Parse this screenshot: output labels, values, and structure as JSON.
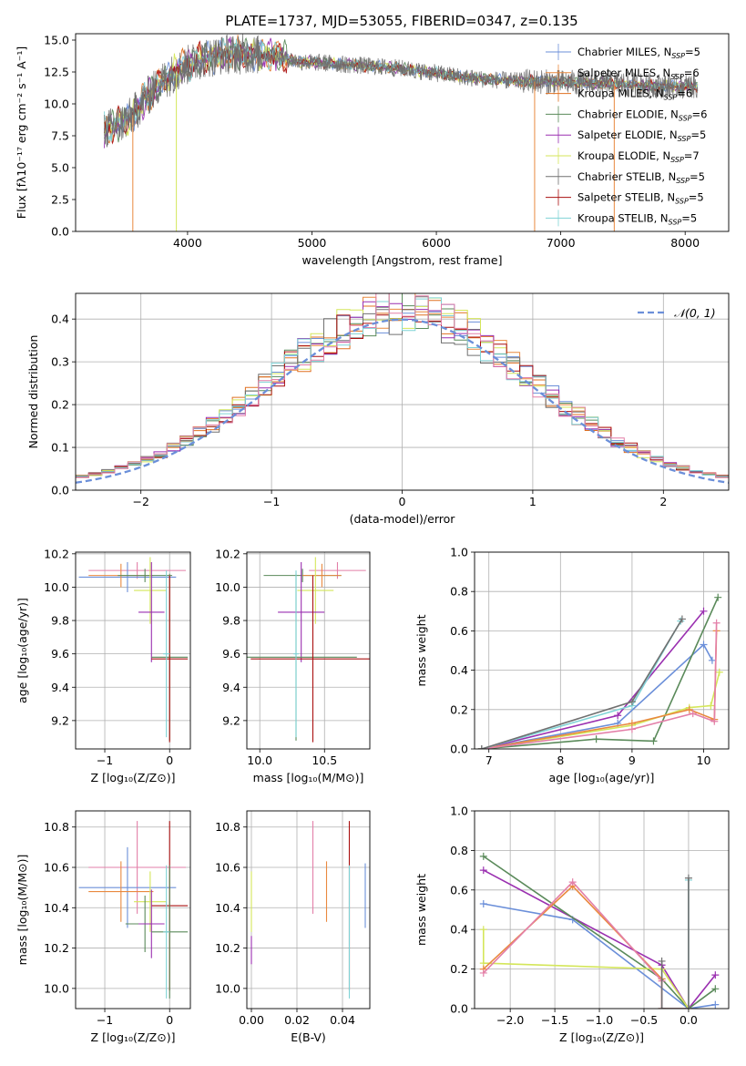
{
  "title": "PLATE=1737, MJD=53055, FIBERID=0347, z=0.135",
  "colors": {
    "Chabrier MILES": "#6b8fd9",
    "Salpeter MILES": "#e9893f",
    "Kroupa MILES": "#e07020",
    "Chabrier ELODIE": "#5a8a5a",
    "Salpeter ELODIE": "#9a2fb0",
    "Kroupa ELODIE": "#d4e65a",
    "Chabrier STELIB": "#707070",
    "Salpeter STELIB": "#aa1010",
    "Kroupa STELIB": "#7fd3d6",
    "pink": "#e37fa8"
  },
  "chart_data": [
    {
      "id": "spectrum",
      "type": "line",
      "title": "PLATE=1737, MJD=53055, FIBERID=0347, z=0.135",
      "xlabel": "wavelength [Angstrom, rest frame]",
      "ylabel": "Flux [fλ10⁻¹⁷ erg cm⁻² s⁻¹ A⁻¹]",
      "xlim": [
        3100,
        8350
      ],
      "ylim": [
        0,
        15.5
      ],
      "xticks": [
        4000,
        5000,
        6000,
        7000,
        8000
      ],
      "yticks": [
        0.0,
        2.5,
        5.0,
        7.5,
        10.0,
        12.5,
        15.0
      ],
      "grid": false,
      "legend_position": "right",
      "legend": [
        {
          "label": "Chabrier MILES, N",
          "sub": "SSP",
          "suffix": "=5",
          "color_key": "Chabrier MILES"
        },
        {
          "label": "Salpeter MILES, N",
          "sub": "SSP",
          "suffix": "=6",
          "color_key": "Salpeter MILES"
        },
        {
          "label": "Kroupa MILES, N",
          "sub": "SSP",
          "suffix": "=6",
          "color_key": "Kroupa MILES"
        },
        {
          "label": "Chabrier ELODIE, N",
          "sub": "SSP",
          "suffix": "=6",
          "color_key": "Chabrier ELODIE"
        },
        {
          "label": "Salpeter ELODIE, N",
          "sub": "SSP",
          "suffix": "=5",
          "color_key": "Salpeter ELODIE"
        },
        {
          "label": "Kroupa ELODIE, N",
          "sub": "SSP",
          "suffix": "=7",
          "color_key": "Kroupa ELODIE"
        },
        {
          "label": "Chabrier STELIB, N",
          "sub": "SSP",
          "suffix": "=5",
          "color_key": "Chabrier STELIB"
        },
        {
          "label": "Salpeter STELIB, N",
          "sub": "SSP",
          "suffix": "=5",
          "color_key": "Salpeter STELIB"
        },
        {
          "label": "Kroupa STELIB, N",
          "sub": "SSP",
          "suffix": "=5",
          "color_key": "Kroupa STELIB"
        }
      ],
      "continuum": [
        [
          3320,
          7.9
        ],
        [
          3450,
          8.4
        ],
        [
          3550,
          9.0
        ],
        [
          3650,
          10.3
        ],
        [
          3800,
          11.8
        ],
        [
          3950,
          12.8
        ],
        [
          4100,
          13.5
        ],
        [
          4300,
          13.9
        ],
        [
          4500,
          13.9
        ],
        [
          4700,
          13.8
        ],
        [
          4900,
          13.3
        ],
        [
          5100,
          13.2
        ],
        [
          5400,
          13.0
        ],
        [
          5700,
          12.8
        ],
        [
          6000,
          12.4
        ],
        [
          6300,
          12.0
        ],
        [
          6600,
          11.8
        ],
        [
          7000,
          11.7
        ],
        [
          7400,
          11.6
        ],
        [
          7800,
          11.4
        ],
        [
          8100,
          11.4
        ]
      ],
      "data_edges": [
        {
          "x": 3560,
          "y_low": 0.0,
          "series": "Salpeter MILES"
        },
        {
          "x": 3910,
          "y_low": 0.0,
          "series": "Kroupa ELODIE"
        },
        {
          "x": 6790,
          "y_low": 0.0,
          "series": "Salpeter MILES"
        },
        {
          "x": 7430,
          "y_low": 0.0,
          "series": "Salpeter MILES"
        }
      ]
    },
    {
      "id": "residuals",
      "type": "histogram",
      "xlabel": "(data-model)/error",
      "ylabel": "Normed distribution",
      "xlim": [
        -2.5,
        2.5
      ],
      "ylim": [
        0,
        0.46
      ],
      "xticks": [
        -2,
        -1,
        0,
        1,
        2
      ],
      "yticks": [
        0.0,
        0.1,
        0.2,
        0.3,
        0.4
      ],
      "grid": true,
      "legend_position": "top-right",
      "gaussian": {
        "label": "𝒩(0, 1)",
        "mean": 0,
        "sigma": 1,
        "color": "#6b8fd9"
      },
      "bin_width": 0.1,
      "series_keys": [
        "Chabrier MILES",
        "Salpeter MILES",
        "Kroupa MILES",
        "Chabrier ELODIE",
        "Salpeter ELODIE",
        "Kroupa ELODIE",
        "Chabrier STELIB",
        "Salpeter STELIB",
        "Kroupa STELIB",
        "pink"
      ]
    },
    {
      "id": "age_Z",
      "type": "errorbar",
      "xlabel": "Z [log₁₀(Z/Z⊙)]",
      "ylabel": "age  [log₁₀(age/yr)]",
      "xlim": [
        -1.45,
        0.32
      ],
      "ylim": [
        9.03,
        10.21
      ],
      "xticks": [
        -1,
        0
      ],
      "yticks": [
        9.2,
        9.4,
        9.6,
        9.8,
        10.0,
        10.2
      ],
      "grid": true,
      "points": [
        {
          "color_key": "pink",
          "x": -0.5,
          "xerr": 0.75,
          "y": 10.1,
          "yerr": 0.05
        },
        {
          "color_key": "Chabrier MILES",
          "x": -0.65,
          "xerr": 0.75,
          "y": 10.06,
          "yerr": 0.09
        },
        {
          "color_key": "Salpeter MILES",
          "x": -0.75,
          "xerr": 0.5,
          "y": 10.07,
          "yerr": 0.07
        },
        {
          "color_key": "Chabrier ELODIE",
          "x": -0.38,
          "xerr": 0.42,
          "y": 10.07,
          "yerr": 0.04
        },
        {
          "color_key": "Kroupa ELODIE",
          "x": -0.3,
          "xerr": 0.25,
          "y": 9.98,
          "yerr": 0.2
        },
        {
          "color_key": "Salpeter ELODIE",
          "x": -0.28,
          "xerr": 0.2,
          "y": 9.85,
          "yerr": 0.3
        },
        {
          "color_key": "Chabrier ELODIE",
          "x": 0.0,
          "xerr": 0.28,
          "y": 9.58,
          "yerr": 0.5
        },
        {
          "color_key": "Salpeter STELIB",
          "x": 0.0,
          "xerr": 0.28,
          "y": 9.57,
          "yerr": 0.5
        },
        {
          "color_key": "Kroupa STELIB",
          "x": -0.05,
          "xerr": 0.05,
          "y": 9.6,
          "yerr": 0.5
        }
      ]
    },
    {
      "id": "age_mass",
      "type": "errorbar",
      "xlabel": "mass [log₁₀(M/M⊙)]",
      "ylabel": "",
      "xlim": [
        9.9,
        10.85
      ],
      "ylim": [
        9.03,
        10.21
      ],
      "xticks": [
        10.0,
        10.5
      ],
      "yticks": [
        9.2,
        9.4,
        9.6,
        9.8,
        10.0,
        10.2
      ],
      "grid": true,
      "points": [
        {
          "color_key": "pink",
          "x": 10.6,
          "xerr": 0.22,
          "y": 10.1,
          "yerr": 0.05
        },
        {
          "color_key": "Chabrier ELODIE",
          "x": 10.33,
          "xerr": 0.3,
          "y": 10.07,
          "yerr": 0.04
        },
        {
          "color_key": "Salpeter MILES",
          "x": 10.48,
          "xerr": 0.15,
          "y": 10.07,
          "yerr": 0.07
        },
        {
          "color_key": "Kroupa ELODIE",
          "x": 10.43,
          "xerr": 0.14,
          "y": 9.98,
          "yerr": 0.2
        },
        {
          "color_key": "Salpeter ELODIE",
          "x": 10.32,
          "xerr": 0.18,
          "y": 9.85,
          "yerr": 0.3
        },
        {
          "color_key": "Chabrier ELODIE",
          "x": 10.28,
          "xerr": 0.47,
          "y": 9.58,
          "yerr": 0.5
        },
        {
          "color_key": "Salpeter STELIB",
          "x": 10.41,
          "xerr": 0.48,
          "y": 9.57,
          "yerr": 0.5
        },
        {
          "color_key": "Kroupa STELIB",
          "x": 10.28,
          "xerr": 0.02,
          "y": 9.6,
          "yerr": 0.5
        }
      ]
    },
    {
      "id": "weight_age",
      "type": "line",
      "xlabel": "age  [log₁₀(age/yr)]",
      "ylabel": "mass weight",
      "xlim": [
        6.8,
        10.35
      ],
      "ylim": [
        0,
        1.0
      ],
      "xticks": [
        7,
        8,
        9,
        10
      ],
      "yticks": [
        0.0,
        0.2,
        0.4,
        0.6,
        0.8,
        1.0
      ],
      "grid": true,
      "series": [
        {
          "color_key": "Chabrier MILES",
          "x": [
            6.9,
            8.8,
            10.0,
            10.12
          ],
          "y": [
            0.0,
            0.13,
            0.53,
            0.45
          ]
        },
        {
          "color_key": "Salpeter ELODIE",
          "x": [
            6.9,
            8.8,
            10.0
          ],
          "y": [
            0.0,
            0.17,
            0.7
          ]
        },
        {
          "color_key": "Chabrier ELODIE",
          "x": [
            6.9,
            8.5,
            9.3,
            10.2
          ],
          "y": [
            0.0,
            0.05,
            0.04,
            0.77
          ]
        },
        {
          "color_key": "Kroupa ELODIE",
          "x": [
            6.9,
            9.0,
            9.8,
            10.1,
            10.22
          ],
          "y": [
            0.0,
            0.12,
            0.21,
            0.22,
            0.39
          ]
        },
        {
          "color_key": "Salpeter MILES",
          "x": [
            6.9,
            9.0,
            9.8,
            10.15,
            10.18
          ],
          "y": [
            0.0,
            0.13,
            0.2,
            0.15,
            0.6
          ]
        },
        {
          "color_key": "pink",
          "x": [
            6.9,
            9.0,
            9.85,
            10.15,
            10.18
          ],
          "y": [
            0.0,
            0.1,
            0.18,
            0.14,
            0.64
          ]
        },
        {
          "color_key": "Kroupa STELIB",
          "x": [
            6.9,
            9.0,
            9.68
          ],
          "y": [
            0.0,
            0.22,
            0.65
          ]
        },
        {
          "color_key": "Chabrier STELIB",
          "x": [
            6.9,
            9.0,
            9.7
          ],
          "y": [
            0.0,
            0.24,
            0.66
          ]
        }
      ]
    },
    {
      "id": "mass_Z",
      "type": "errorbar",
      "xlabel": "Z [log₁₀(Z/Z⊙)]",
      "ylabel": "mass [log₁₀(M/M⊙)]",
      "xlim": [
        -1.45,
        0.32
      ],
      "ylim": [
        9.9,
        10.88
      ],
      "xticks": [
        -1,
        0
      ],
      "yticks": [
        10.0,
        10.2,
        10.4,
        10.6,
        10.8
      ],
      "grid": true,
      "points": [
        {
          "color_key": "pink",
          "x": -0.5,
          "xerr": 0.75,
          "y": 10.6,
          "yerr": 0.23
        },
        {
          "color_key": "Chabrier MILES",
          "x": -0.65,
          "xerr": 0.75,
          "y": 10.5,
          "yerr": 0.2
        },
        {
          "color_key": "Salpeter MILES",
          "x": -0.75,
          "xerr": 0.5,
          "y": 10.48,
          "yerr": 0.15
        },
        {
          "color_key": "Kroupa ELODIE",
          "x": -0.3,
          "xerr": 0.25,
          "y": 10.43,
          "yerr": 0.15
        },
        {
          "color_key": "Salpeter STELIB",
          "x": 0.0,
          "xerr": 0.28,
          "y": 10.41,
          "yerr": 0.42
        },
        {
          "color_key": "Chabrier ELODIE",
          "x": -0.38,
          "xerr": 0.3,
          "y": 10.32,
          "yerr": 0.14
        },
        {
          "color_key": "Salpeter ELODIE",
          "x": -0.28,
          "xerr": 0.2,
          "y": 10.32,
          "yerr": 0.17
        },
        {
          "color_key": "Chabrier ELODIE",
          "x": 0.0,
          "xerr": 0.28,
          "y": 10.28,
          "yerr": 0.33
        },
        {
          "color_key": "Kroupa STELIB",
          "x": -0.05,
          "xerr": 0.05,
          "y": 10.28,
          "yerr": 0.33
        }
      ]
    },
    {
      "id": "mass_EBV",
      "type": "errorbar",
      "xlabel": "E(B-V)",
      "ylabel": "",
      "xlim": [
        -0.002,
        0.052
      ],
      "ylim": [
        9.9,
        10.88
      ],
      "xticks": [
        0.0,
        0.02,
        0.04
      ],
      "yticks": [
        10.0,
        10.2,
        10.4,
        10.6,
        10.8
      ],
      "grid": true,
      "points": [
        {
          "color_key": "pink",
          "x": 0.027,
          "xerr": 0,
          "y": 10.6,
          "yerr": 0.23
        },
        {
          "color_key": "Salpeter MILES",
          "x": 0.033,
          "xerr": 0,
          "y": 10.48,
          "yerr": 0.15
        },
        {
          "color_key": "Kroupa ELODIE",
          "x": 0.0,
          "xerr": 0,
          "y": 10.43,
          "yerr": 0.15
        },
        {
          "color_key": "Salpeter ELODIE",
          "x": 0.0,
          "xerr": 0,
          "y": 10.19,
          "yerr": 0.07
        },
        {
          "color_key": "Salpeter STELIB",
          "x": 0.043,
          "xerr": 0,
          "y": 10.41,
          "yerr": 0.42
        },
        {
          "color_key": "Kroupa STELIB",
          "x": 0.043,
          "xerr": 0,
          "y": 10.28,
          "yerr": 0.33
        },
        {
          "color_key": "Chabrier MILES",
          "x": 0.05,
          "xerr": 0,
          "y": 10.46,
          "yerr": 0.16
        }
      ]
    },
    {
      "id": "weight_Z",
      "type": "line",
      "xlabel": "Z [log₁₀(Z/Z⊙)]",
      "ylabel": "mass weight",
      "xlim": [
        -2.4,
        0.45
      ],
      "ylim": [
        0,
        1.0
      ],
      "xticks": [
        -2.0,
        -1.5,
        -1.0,
        -0.5,
        0.0
      ],
      "yticks": [
        0.0,
        0.2,
        0.4,
        0.6,
        0.8,
        1.0
      ],
      "grid": true,
      "series": [
        {
          "color_key": "Chabrier MILES",
          "x": [
            -2.3,
            -1.3,
            0.0,
            0.3
          ],
          "y": [
            0.53,
            0.45,
            0.0,
            0.02
          ]
        },
        {
          "color_key": "Salpeter ELODIE",
          "x": [
            -2.3,
            -0.3,
            0.0,
            0.3
          ],
          "y": [
            0.7,
            0.22,
            0.0,
            0.17
          ]
        },
        {
          "color_key": "Chabrier ELODIE",
          "x": [
            -2.3,
            -0.3,
            0.0,
            0.3
          ],
          "y": [
            0.77,
            0.15,
            0.0,
            0.1
          ]
        },
        {
          "color_key": "Kroupa ELODIE",
          "x": [
            -2.3,
            -2.3,
            -0.3,
            0.0
          ],
          "y": [
            0.4,
            0.23,
            0.2,
            0.0
          ]
        },
        {
          "color_key": "Salpeter MILES",
          "x": [
            -2.3,
            -1.3,
            -0.3,
            -0.3,
            0.0
          ],
          "y": [
            0.2,
            0.62,
            0.15,
            0.0,
            0.0
          ]
        },
        {
          "color_key": "pink",
          "x": [
            -2.3,
            -1.3,
            -0.3,
            -0.3,
            0.0
          ],
          "y": [
            0.18,
            0.64,
            0.14,
            0.0,
            0.0
          ]
        },
        {
          "color_key": "Kroupa STELIB",
          "x": [
            0.0,
            0.0
          ],
          "y": [
            0.0,
            0.65
          ]
        },
        {
          "color_key": "Chabrier STELIB",
          "x": [
            0.0,
            0.0,
            -0.3,
            -0.3
          ],
          "y": [
            0.66,
            0.0,
            0.0,
            0.24
          ]
        }
      ]
    }
  ]
}
